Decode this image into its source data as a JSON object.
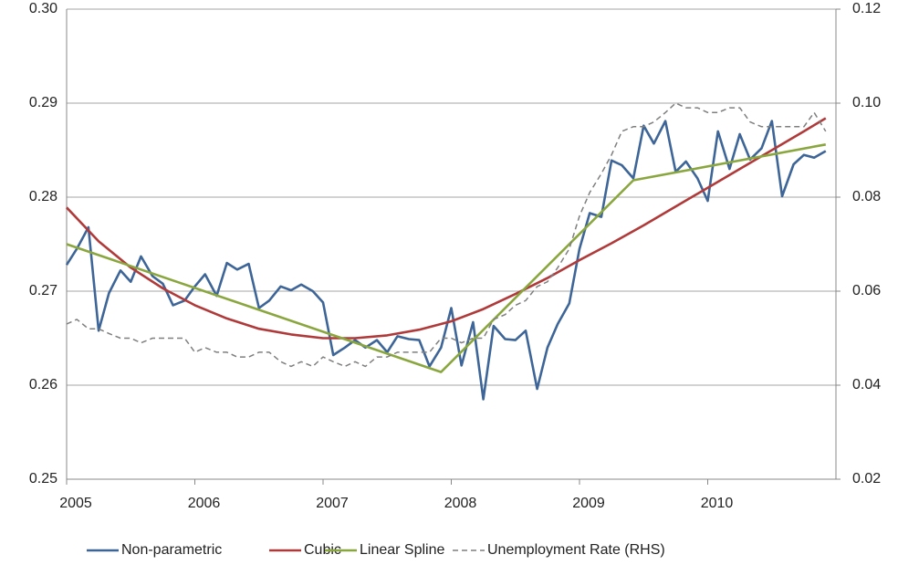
{
  "chart_data": {
    "type": "line",
    "x": [
      2005.0,
      2005.08,
      2005.17,
      2005.25,
      2005.33,
      2005.42,
      2005.5,
      2005.58,
      2005.67,
      2005.75,
      2005.83,
      2005.92,
      2006.0,
      2006.08,
      2006.17,
      2006.25,
      2006.33,
      2006.42,
      2006.5,
      2006.58,
      2006.67,
      2006.75,
      2006.83,
      2006.92,
      2007.0,
      2007.08,
      2007.17,
      2007.25,
      2007.33,
      2007.42,
      2007.5,
      2007.58,
      2007.67,
      2007.75,
      2007.83,
      2007.92,
      2008.0,
      2008.08,
      2008.17,
      2008.25,
      2008.33,
      2008.42,
      2008.5,
      2008.58,
      2008.67,
      2008.75,
      2008.83,
      2008.92,
      2009.0,
      2009.08,
      2009.17,
      2009.25,
      2009.33,
      2009.42,
      2009.5,
      2009.58,
      2009.67,
      2009.75,
      2009.83,
      2009.92,
      2010.0,
      2010.08,
      2010.17,
      2010.25,
      2010.33,
      2010.42,
      2010.5,
      2010.58,
      2010.67,
      2010.75,
      2010.83,
      2010.92
    ],
    "series": [
      {
        "name": "Non-parametric",
        "color": "#3d6597",
        "values": [
          0.2728,
          0.2745,
          0.2768,
          0.2658,
          0.2698,
          0.2722,
          0.271,
          0.2737,
          0.2716,
          0.2708,
          0.2685,
          0.269,
          0.2705,
          0.2718,
          0.2695,
          0.273,
          0.2723,
          0.2729,
          0.2682,
          0.269,
          0.2705,
          0.2701,
          0.2707,
          0.27,
          0.2688,
          0.2632,
          0.264,
          0.2648,
          0.264,
          0.2648,
          0.2635,
          0.2652,
          0.2649,
          0.2648,
          0.262,
          0.264,
          0.2682,
          0.2621,
          0.2667,
          0.2585,
          0.2663,
          0.2649,
          0.2648,
          0.2658,
          0.2596,
          0.264,
          0.2665,
          0.2687,
          0.2745,
          0.2783,
          0.2779,
          0.2839,
          0.2834,
          0.282,
          0.2876,
          0.2857,
          0.2881,
          0.2827,
          0.2838,
          0.282,
          0.2796,
          0.287,
          0.283,
          0.2867,
          0.284,
          0.2852,
          0.2881,
          0.2801,
          0.2835,
          0.2845,
          0.2842,
          0.2849
        ]
      },
      {
        "name": "Cubic",
        "color": "#b03a3a",
        "x": [
          2005.0,
          2005.25,
          2005.5,
          2005.75,
          2006.0,
          2006.25,
          2006.5,
          2006.75,
          2007.0,
          2007.25,
          2007.5,
          2007.75,
          2008.0,
          2008.25,
          2008.5,
          2008.75,
          2009.0,
          2009.25,
          2009.5,
          2009.75,
          2010.0,
          2010.25,
          2010.5,
          2010.75,
          2010.92
        ],
        "values": [
          0.2789,
          0.2753,
          0.2725,
          0.2703,
          0.2685,
          0.2671,
          0.266,
          0.2654,
          0.265,
          0.265,
          0.2653,
          0.2659,
          0.2668,
          0.2681,
          0.2697,
          0.2714,
          0.2733,
          0.2751,
          0.277,
          0.279,
          0.281,
          0.283,
          0.285,
          0.287,
          0.2884
        ]
      },
      {
        "name": "Linear Spline",
        "color": "#8aa63e",
        "x": [
          2005.0,
          2007.92,
          2009.42,
          2010.92
        ],
        "values": [
          0.275,
          0.2614,
          0.2818,
          0.2856
        ]
      },
      {
        "name": "Unemployment Rate (RHS)",
        "color": "#7f7f7f",
        "axis": "y2",
        "dashed": true,
        "values": [
          0.053,
          0.054,
          0.052,
          0.052,
          0.051,
          0.05,
          0.05,
          0.049,
          0.05,
          0.05,
          0.05,
          0.05,
          0.047,
          0.048,
          0.047,
          0.047,
          0.046,
          0.046,
          0.047,
          0.047,
          0.045,
          0.044,
          0.045,
          0.044,
          0.046,
          0.045,
          0.044,
          0.045,
          0.044,
          0.046,
          0.046,
          0.047,
          0.047,
          0.047,
          0.047,
          0.05,
          0.05,
          0.049,
          0.05,
          0.05,
          0.054,
          0.055,
          0.057,
          0.058,
          0.061,
          0.062,
          0.065,
          0.069,
          0.076,
          0.081,
          0.085,
          0.089,
          0.094,
          0.095,
          0.095,
          0.096,
          0.098,
          0.1,
          0.099,
          0.099,
          0.098,
          0.098,
          0.099,
          0.099,
          0.096,
          0.095,
          0.095,
          0.095,
          0.095,
          0.095,
          0.098,
          0.094
        ]
      }
    ],
    "xlim": [
      2005,
      2011
    ],
    "xticks": [
      2005,
      2006,
      2007,
      2008,
      2009,
      2010
    ],
    "ylim": [
      0.25,
      0.3
    ],
    "yticks": [
      0.25,
      0.26,
      0.27,
      0.28,
      0.29,
      {
        "value": 0.3,
        "label": "0.30"
      }
    ],
    "y2lim": [
      0.02,
      0.12
    ],
    "y2ticks": [
      0.02,
      0.04,
      0.06,
      0.08,
      {
        "value": 0.1,
        "label": "0.10"
      },
      {
        "value": 0.12,
        "label": "0.12"
      }
    ],
    "grid": true,
    "legend": "bottom"
  }
}
